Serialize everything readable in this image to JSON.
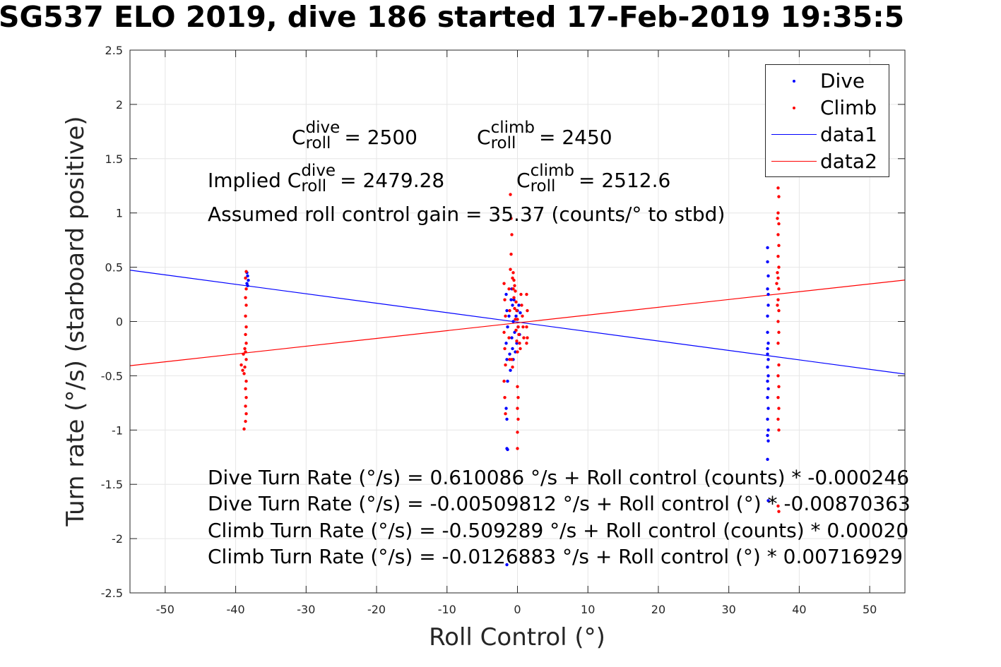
{
  "title": "SG537 ELO 2019, dive 186 started 17-Feb-2019 19:35:5",
  "annotations": {
    "c_dive": {
      "prefix": "C",
      "sup": "dive",
      "sub": "roll",
      "value": "= 2500"
    },
    "c_climb": {
      "prefix": "C",
      "sup": "climb",
      "sub": "roll",
      "value": "= 2450"
    },
    "implied_dive": {
      "prefix": "Implied C",
      "sup": "dive",
      "sub": "roll",
      "value": "= 2479.28"
    },
    "implied_climb": {
      "prefix": "C",
      "sup": "climb",
      "sub": "roll",
      "value": "= 2512.6"
    },
    "gain": "Assumed roll control gain = 35.37 (counts/° to stbd)",
    "fit_lines": [
      "Dive Turn Rate (°/s) = 0.610086 °/s + Roll control (counts) * -0.000246",
      "Dive Turn Rate (°/s) = -0.00509812 °/s + Roll control (°) * -0.00870363",
      "Climb Turn Rate (°/s) = -0.509289 °/s + Roll control (counts) * 0.00020",
      "Climb Turn Rate (°/s) = -0.0126883 °/s + Roll control (°) * 0.00716929"
    ]
  },
  "legend": [
    {
      "label": "Dive",
      "kind": "marker",
      "color": "#0000ff"
    },
    {
      "label": "Climb",
      "kind": "marker",
      "color": "#ff0000"
    },
    {
      "label": "data1",
      "kind": "line",
      "color": "#0000ff"
    },
    {
      "label": "data2",
      "kind": "line",
      "color": "#ff0000"
    }
  ],
  "chart_data": {
    "type": "scatter",
    "title": "SG537 ELO 2019, dive 186 started 17-Feb-2019 19:35:5",
    "xlabel": "Roll Control (°)",
    "ylabel": "Turn rate (°/s) (starboard positive)",
    "xlim": [
      -55,
      55
    ],
    "ylim": [
      -2.5,
      2.5
    ],
    "xticks": [
      "-50",
      "-40",
      "-30",
      "-20",
      "-10",
      "0",
      "10",
      "20",
      "30",
      "40",
      "50"
    ],
    "yticks": [
      "2.5",
      "2",
      "1.5",
      "1",
      "0.5",
      "0",
      "-0.5",
      "-1",
      "-1.5",
      "-2",
      "-2.5"
    ],
    "grid": true,
    "legend_position": "top-right",
    "series": [
      {
        "name": "Dive",
        "kind": "scatter",
        "color": "#0000ff",
        "points": [
          [
            -38.4,
            0.45
          ],
          [
            -38.3,
            0.42
          ],
          [
            -38.2,
            0.38
          ],
          [
            -38.4,
            0.35
          ],
          [
            -38.3,
            0.33
          ],
          [
            -1.6,
            0.25
          ],
          [
            -1.5,
            0.1
          ],
          [
            -1.4,
            -0.05
          ],
          [
            -1.6,
            -0.2
          ],
          [
            -1.5,
            -0.35
          ],
          [
            -1.4,
            -0.55
          ],
          [
            -1.6,
            -0.8
          ],
          [
            -1.5,
            -1.17
          ],
          [
            -1.4,
            -1.18
          ],
          [
            -1.5,
            -0.9
          ],
          [
            -0.8,
            0.3
          ],
          [
            -0.7,
            0.15
          ],
          [
            -0.6,
            0.0
          ],
          [
            -0.8,
            -0.15
          ],
          [
            -0.7,
            -0.25
          ],
          [
            -0.6,
            -0.35
          ],
          [
            -0.5,
            0.2
          ],
          [
            -0.4,
            -0.1
          ],
          [
            -0.3,
            -0.28
          ],
          [
            -0.2,
            0.05
          ],
          [
            -0.1,
            -0.2
          ],
          [
            0.0,
            0.1
          ],
          [
            0.1,
            -0.05
          ],
          [
            0.2,
            0.15
          ],
          [
            0.3,
            -0.12
          ],
          [
            0.4,
            0.08
          ],
          [
            -1.2,
            0.05
          ],
          [
            -1.1,
            -0.3
          ],
          [
            -1.0,
            -0.45
          ],
          [
            -0.9,
            0.2
          ],
          [
            -1.5,
            -2.24
          ],
          [
            35.5,
            0.68
          ],
          [
            35.5,
            0.55
          ],
          [
            35.6,
            0.42
          ],
          [
            35.5,
            0.3
          ],
          [
            35.6,
            0.15
          ],
          [
            35.5,
            0.05
          ],
          [
            35.5,
            -0.1
          ],
          [
            35.6,
            -0.2
          ],
          [
            35.5,
            -0.3
          ],
          [
            35.6,
            -0.35
          ],
          [
            35.5,
            -0.42
          ],
          [
            35.6,
            -0.5
          ],
          [
            35.5,
            -0.55
          ],
          [
            35.6,
            -0.62
          ],
          [
            35.5,
            -0.7
          ],
          [
            35.6,
            -0.8
          ],
          [
            35.5,
            -0.9
          ],
          [
            35.6,
            -1.0
          ],
          [
            35.5,
            -1.05
          ],
          [
            35.6,
            -1.1
          ],
          [
            35.5,
            -1.27
          ],
          [
            35.6,
            -1.65
          ],
          [
            35.5,
            -0.25
          ],
          [
            35.6,
            0.25
          ]
        ]
      },
      {
        "name": "Climb",
        "kind": "scatter",
        "color": "#ff0000",
        "points": [
          [
            -38.5,
            0.46
          ],
          [
            -38.6,
            0.4
          ],
          [
            -38.5,
            0.3
          ],
          [
            -38.6,
            0.22
          ],
          [
            -38.5,
            0.15
          ],
          [
            -38.6,
            0.05
          ],
          [
            -38.5,
            -0.05
          ],
          [
            -38.6,
            -0.12
          ],
          [
            -38.5,
            -0.2
          ],
          [
            -38.6,
            -0.28
          ],
          [
            -38.5,
            -0.35
          ],
          [
            -38.7,
            -0.42
          ],
          [
            -38.8,
            -0.48
          ],
          [
            -39.0,
            -0.45
          ],
          [
            -39.2,
            -0.4
          ],
          [
            -38.5,
            -0.55
          ],
          [
            -38.6,
            -0.62
          ],
          [
            -38.5,
            -0.7
          ],
          [
            -38.6,
            -0.78
          ],
          [
            -38.5,
            -0.85
          ],
          [
            -38.6,
            -0.92
          ],
          [
            -38.8,
            -0.99
          ],
          [
            -38.9,
            -0.3
          ],
          [
            -38.7,
            -0.25
          ],
          [
            -1.9,
            0.35
          ],
          [
            -1.8,
            0.2
          ],
          [
            -1.7,
            0.05
          ],
          [
            -1.9,
            -0.1
          ],
          [
            -1.8,
            -0.25
          ],
          [
            -1.7,
            -0.4
          ],
          [
            -1.9,
            -0.55
          ],
          [
            -1.8,
            -0.7
          ],
          [
            -1.7,
            -0.85
          ],
          [
            -1.0,
            1.17
          ],
          [
            -0.9,
            0.95
          ],
          [
            -0.8,
            0.8
          ],
          [
            -0.9,
            0.62
          ],
          [
            -1.0,
            0.48
          ],
          [
            -0.7,
            0.4
          ],
          [
            -0.6,
            0.3
          ],
          [
            -0.5,
            0.22
          ],
          [
            -0.4,
            0.12
          ],
          [
            -0.3,
            0.02
          ],
          [
            -0.2,
            -0.08
          ],
          [
            -0.1,
            -0.18
          ],
          [
            0.0,
            -0.28
          ],
          [
            -0.8,
            -0.35
          ],
          [
            -0.7,
            -0.42
          ],
          [
            -0.6,
            0.45
          ],
          [
            -0.5,
            0.38
          ],
          [
            -0.4,
            0.33
          ],
          [
            -0.3,
            0.28
          ],
          [
            -0.2,
            0.18
          ],
          [
            -0.1,
            0.1
          ],
          [
            0.0,
            0.02
          ],
          [
            0.1,
            -0.05
          ],
          [
            0.2,
            -0.12
          ],
          [
            0.3,
            -0.2
          ],
          [
            0.4,
            -0.25
          ],
          [
            0.5,
            0.25
          ],
          [
            0.6,
            0.15
          ],
          [
            0.7,
            0.05
          ],
          [
            0.8,
            -0.05
          ],
          [
            0.9,
            -0.15
          ],
          [
            0.0,
            -0.6
          ],
          [
            0.0,
            -0.8
          ],
          [
            0.0,
            -1.02
          ],
          [
            0.0,
            -1.17
          ],
          [
            0.1,
            -0.7
          ],
          [
            0.1,
            -0.9
          ],
          [
            1.3,
            0.25
          ],
          [
            1.4,
            0.1
          ],
          [
            1.3,
            -0.05
          ],
          [
            1.4,
            -0.15
          ],
          [
            1.3,
            -0.2
          ],
          [
            -1.2,
            0.3
          ],
          [
            -1.1,
            0.1
          ],
          [
            -1.2,
            -0.15
          ],
          [
            -1.1,
            -0.35
          ],
          [
            37.0,
            1.23
          ],
          [
            37.1,
            1.15
          ],
          [
            37.0,
            1.0
          ],
          [
            37.1,
            0.9
          ],
          [
            37.0,
            0.8
          ],
          [
            37.1,
            0.7
          ],
          [
            37.0,
            0.6
          ],
          [
            37.1,
            0.5
          ],
          [
            37.0,
            0.4
          ],
          [
            37.1,
            0.3
          ],
          [
            37.0,
            0.2
          ],
          [
            37.1,
            0.1
          ],
          [
            37.0,
            0.0
          ],
          [
            37.1,
            -0.1
          ],
          [
            37.0,
            -0.2
          ],
          [
            37.1,
            -0.4
          ],
          [
            37.0,
            -0.5
          ],
          [
            37.1,
            -0.6
          ],
          [
            37.0,
            -0.7
          ],
          [
            37.1,
            -0.8
          ],
          [
            37.0,
            -0.9
          ],
          [
            37.1,
            -1.0
          ],
          [
            37.0,
            -1.7
          ],
          [
            37.1,
            -1.75
          ],
          [
            36.9,
            0.95
          ],
          [
            36.9,
            0.45
          ],
          [
            36.8,
            0.35
          ],
          [
            36.9,
            0.15
          ]
        ]
      },
      {
        "name": "data1",
        "kind": "line",
        "color": "#0000ff",
        "x": [
          -55,
          55
        ],
        "y": [
          0.473,
          -0.484
        ]
      },
      {
        "name": "data2",
        "kind": "line",
        "color": "#ff0000",
        "x": [
          -55,
          55
        ],
        "y": [
          -0.407,
          0.382
        ]
      }
    ]
  }
}
